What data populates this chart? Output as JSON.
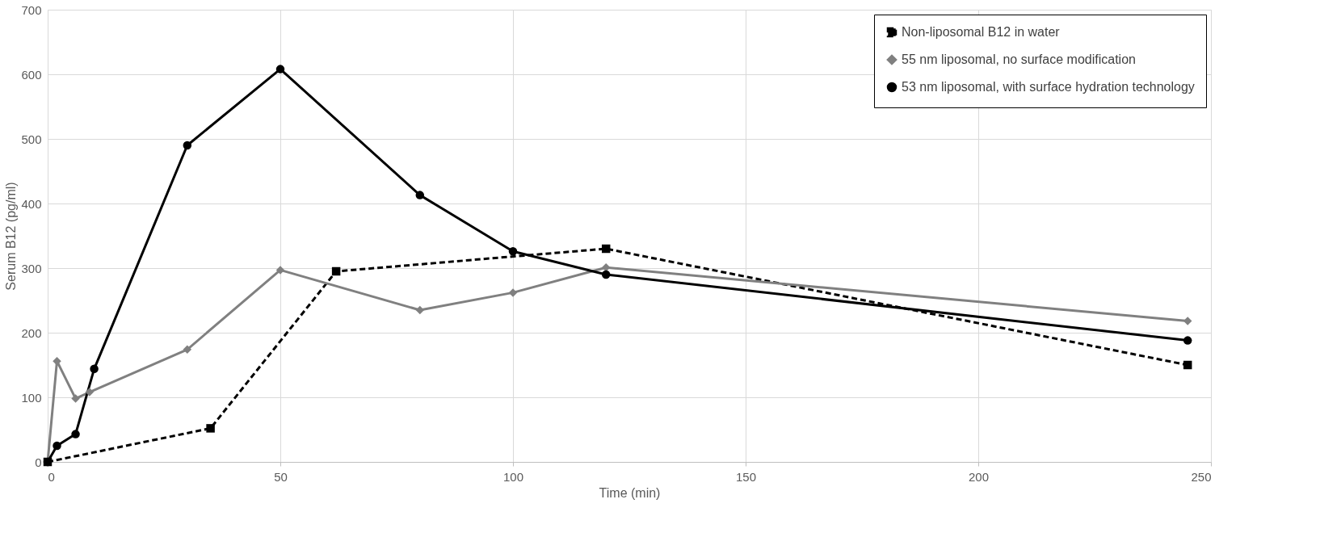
{
  "chart_data": {
    "type": "line",
    "xlabel": "Time (min)",
    "ylabel": "Serum B12 (pg/ml)",
    "xlim": [
      0,
      250
    ],
    "xticks": [
      0,
      50,
      100,
      150,
      200,
      250
    ],
    "ylim": [
      0,
      700
    ],
    "yticks": [
      0,
      100,
      200,
      300,
      400,
      500,
      600,
      700
    ],
    "grid": true,
    "legend": "top right",
    "series": [
      {
        "name": "Non-liposomal B12 in water",
        "color": "#000000",
        "marker": "square",
        "line_style": "dashed",
        "x": [
          0,
          35,
          62,
          120,
          245
        ],
        "values": [
          0,
          52,
          295,
          330,
          150
        ]
      },
      {
        "name": "55 nm liposomal, no surface modification",
        "color": "#808080",
        "marker": "diamond",
        "line_style": "solid",
        "x": [
          0,
          2,
          6,
          9,
          30,
          50,
          80,
          100,
          120,
          245
        ],
        "values": [
          0,
          156,
          98,
          108,
          174,
          297,
          235,
          262,
          301,
          218
        ]
      },
      {
        "name": "53 nm liposomal, with surface hydration technology",
        "color": "#000000",
        "marker": "circle",
        "line_style": "solid",
        "x": [
          0,
          2,
          6,
          10,
          30,
          50,
          80,
          100,
          120,
          245
        ],
        "values": [
          0,
          25,
          43,
          144,
          490,
          608,
          413,
          326,
          290,
          188
        ]
      }
    ]
  }
}
